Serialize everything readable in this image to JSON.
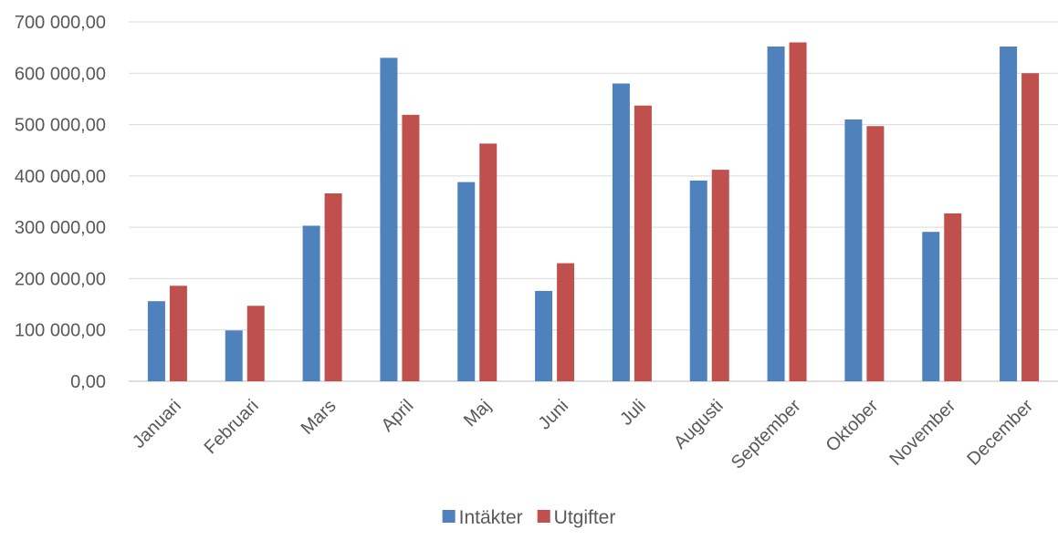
{
  "chart_data": {
    "type": "bar",
    "categories": [
      "Januari",
      "Februari",
      "Mars",
      "April",
      "Maj",
      "Juni",
      "Juli",
      "Augusti",
      "September",
      "Oktober",
      "November",
      "December"
    ],
    "series": [
      {
        "name": "Intäkter",
        "color": "#4f81bd",
        "values": [
          156000,
          99000,
          303000,
          630000,
          388000,
          176000,
          580000,
          391000,
          652000,
          510000,
          291000,
          652000
        ]
      },
      {
        "name": "Utgifter",
        "color": "#c0504d",
        "values": [
          186000,
          147000,
          366000,
          519000,
          463000,
          230000,
          537000,
          412000,
          660000,
          497000,
          327000,
          600000
        ]
      }
    ],
    "ylim": [
      0,
      700000
    ],
    "yticks": [
      0,
      100000,
      200000,
      300000,
      400000,
      500000,
      600000,
      700000
    ],
    "ytick_labels": [
      "0,00",
      "100 000,00",
      "200 000,00",
      "300 000,00",
      "400 000,00",
      "500 000,00",
      "600 000,00",
      "700 000,00"
    ],
    "grid": true,
    "legend_position": "bottom",
    "title": "",
    "xlabel": "",
    "ylabel": ""
  }
}
